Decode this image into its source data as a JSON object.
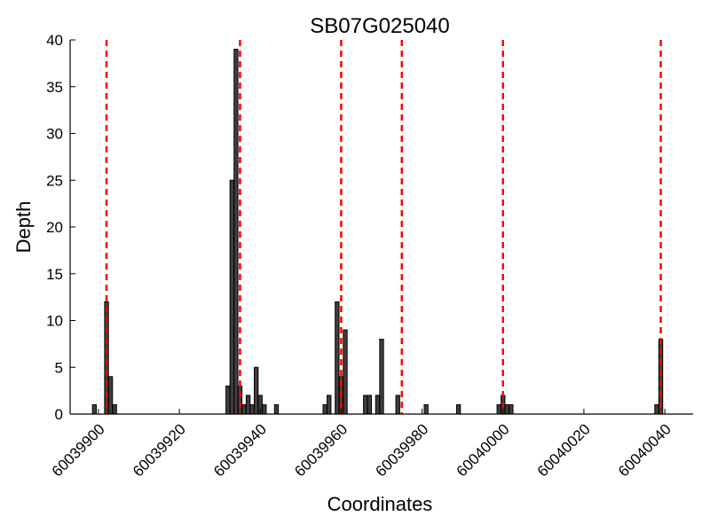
{
  "chart_data": {
    "type": "bar",
    "title": "SB07G025040",
    "xlabel": "Coordinates",
    "ylabel": "Depth",
    "xlim": [
      60039893,
      60040047
    ],
    "ylim": [
      0,
      40
    ],
    "xticks": [
      60039900,
      60039920,
      60039940,
      60039960,
      60039980,
      60040000,
      60040020,
      60040040
    ],
    "yticks": [
      0,
      5,
      10,
      15,
      20,
      25,
      30,
      35,
      40
    ],
    "grid": false,
    "colors": {
      "bar": "#3f3f3f",
      "marker": "#ff0000"
    },
    "series": [
      {
        "x": [
          60039899,
          60039902,
          60039903,
          60039904,
          60039932,
          60039933,
          60039934,
          60039935,
          60039936,
          60039937,
          60039938,
          60039939,
          60039940,
          60039941,
          60039944,
          60039956,
          60039957,
          60039959,
          60039960,
          60039961,
          60039962,
          60039966,
          60039967,
          60039969,
          60039970,
          60039974,
          60039981,
          60039989,
          60039999,
          60040000,
          60040001,
          60040002,
          60040038,
          60040039
        ],
        "values": [
          1,
          12,
          4,
          1,
          3,
          25,
          39,
          3,
          1,
          2,
          1,
          5,
          2,
          1,
          1,
          1,
          2,
          12,
          4,
          9,
          0,
          2,
          2,
          2,
          8,
          2,
          1,
          1,
          1,
          2,
          1,
          1,
          1,
          8
        ]
      }
    ],
    "markers": [
      60039902,
      60039935,
      60039960,
      60039975,
      60040000,
      60040039
    ]
  }
}
